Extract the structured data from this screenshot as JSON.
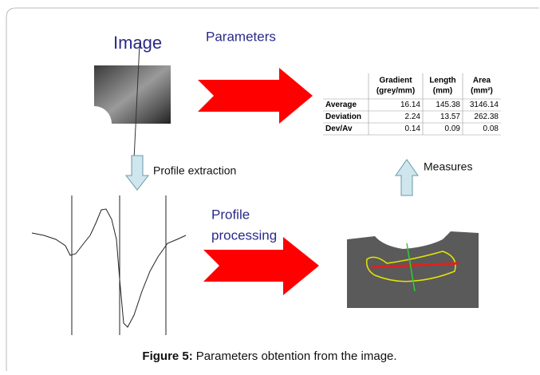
{
  "labels": {
    "image": "Image",
    "parameters": "Parameters",
    "profile_extraction": "Profile extraction",
    "profile_processing": [
      "Profile",
      "processing"
    ],
    "measures": "Measures"
  },
  "table": {
    "header": [
      [
        "Gradient",
        "(grey/mm)"
      ],
      [
        "Length",
        "(mm)"
      ],
      [
        "Area",
        "(mm²)"
      ]
    ],
    "rows": [
      [
        "Average",
        "16.14",
        "145.38",
        "3146.14"
      ],
      [
        "Deviation",
        "2.24",
        "13.57",
        "262.38"
      ],
      [
        "Dev/Av",
        "0.14",
        "0.09",
        "0.08"
      ]
    ]
  },
  "caption": {
    "label": "Figure 5:",
    "text": "Parameters obtention from the image."
  }
}
